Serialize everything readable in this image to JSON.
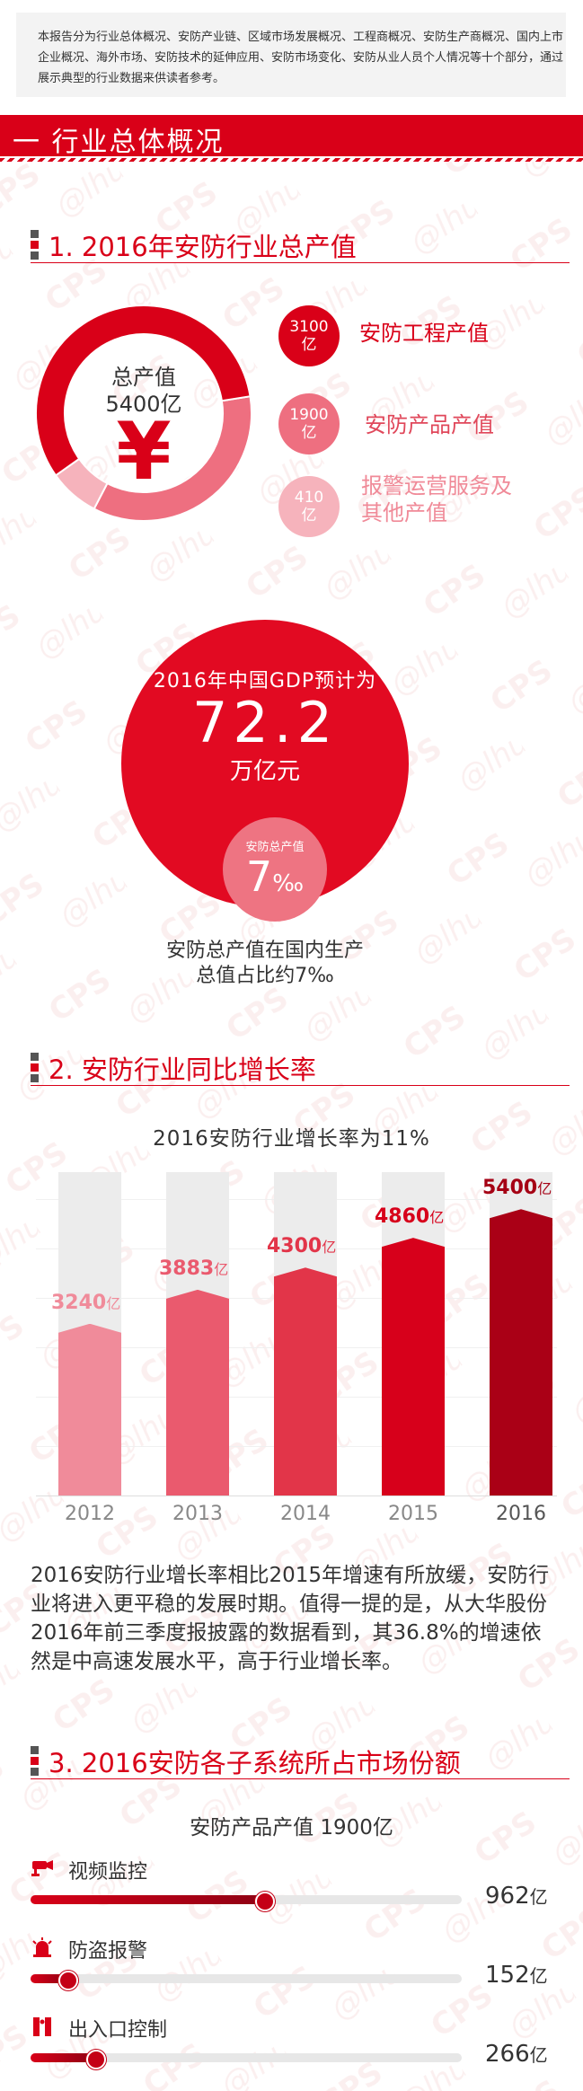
{
  "intro": {
    "text": "本报告分为行业总体概况、安防产业链、区域市场发展概况、工程商概况、安防生产商概况、国内上市企业概况、海外市场、安防技术的延伸应用、安防市场变化、安防从业人员个人情况等十个部分，通过展示典型的行业数据来供读者参考。"
  },
  "section1": {
    "label": "一 行业总体概况"
  },
  "heading1": {
    "title": "1. 2016年安防行业总产值"
  },
  "donut": {
    "center_label": "总产值",
    "center_value": "5400亿",
    "currency_symbol": "¥",
    "colors": [
      "#d90018",
      "#ee6f80",
      "#f6b3bc"
    ]
  },
  "legend": [
    {
      "value": "3100",
      "unit": "亿",
      "label": "安防工程产值",
      "color": "#d90018",
      "text_color": "#d90018"
    },
    {
      "value": "1900",
      "unit": "亿",
      "label": "安防产品产值",
      "color": "#ee6f80",
      "text_color": "#e0475a"
    },
    {
      "value": "410",
      "unit": "亿",
      "label_line1": "报警运营服务及",
      "label_line2": "其他产值",
      "color": "#f6b3bc",
      "text_color": "#f08a98"
    }
  ],
  "gdp": {
    "line1": "2016年中国GDP预计为",
    "value": "72.2",
    "unit": "万亿元",
    "inner_label": "安防总产值",
    "inner_value": "7",
    "inner_unit": "‰",
    "caption_line1": "安防总产值在国内生产",
    "caption_line2": "总值占比约7‰"
  },
  "heading2": {
    "title": "2. 安防行业同比增长率"
  },
  "chart_data": {
    "type": "bar",
    "title": "2016安防行业增长率为11%",
    "categories": [
      "2012",
      "2013",
      "2014",
      "2015",
      "2016"
    ],
    "values": [
      3240,
      3883,
      4300,
      4860,
      5400
    ],
    "value_labels": [
      "3240",
      "3883",
      "4300",
      "4860",
      "5400"
    ],
    "unit": "亿",
    "colors": [
      "#f08b9a",
      "#ea5a6e",
      "#e23549",
      "#d7001b",
      "#aa0016"
    ],
    "label_colors": [
      "#f08b9a",
      "#ea5a6e",
      "#e23549",
      "#d7001b",
      "#a50014"
    ],
    "ylim": [
      0,
      6100
    ]
  },
  "paragraph": {
    "text": "2016安防行业增长率相比2015年增速有所放缓，安防行业将进入更平稳的发展时期。值得一提的是，从大华股份2016年前三季度报披露的数据看到，其36.8%的增速依然是中高速发展水平，高于行业增长率。"
  },
  "heading3": {
    "title": "3. 2016安防各子系统所占市场份额"
  },
  "share": {
    "subtitle": "安防产品产值 1900亿",
    "max": 1900,
    "items": [
      {
        "icon": "camera-icon",
        "label": "视频监控",
        "value": 962,
        "value_text": "962",
        "unit": "亿"
      },
      {
        "icon": "alarm-icon",
        "label": "防盗报警",
        "value": 152,
        "value_text": "152",
        "unit": "亿"
      },
      {
        "icon": "gate-icon",
        "label": "出入口控制",
        "value": 266,
        "value_text": "266",
        "unit": "亿"
      }
    ]
  }
}
